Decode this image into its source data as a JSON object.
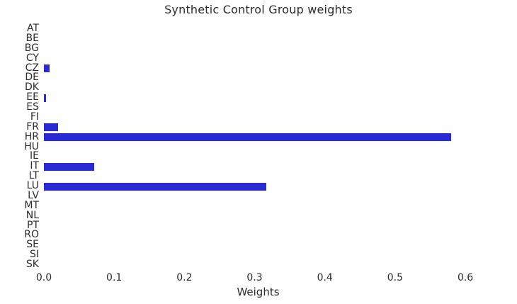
{
  "chart_data": {
    "type": "bar",
    "orientation": "horizontal",
    "title": "Synthetic Control Group weights",
    "xlabel": "Weights",
    "ylabel": "",
    "categories": [
      "AT",
      "BE",
      "BG",
      "CY",
      "CZ",
      "DE",
      "DK",
      "EE",
      "ES",
      "FI",
      "FR",
      "HR",
      "HU",
      "IE",
      "IT",
      "LT",
      "LU",
      "LV",
      "MT",
      "NL",
      "PT",
      "RO",
      "SE",
      "SI",
      "SK"
    ],
    "values": [
      0,
      0,
      0,
      0,
      0.008,
      0,
      0,
      0.003,
      0,
      0,
      0.02,
      0.58,
      0,
      0,
      0.072,
      0,
      0.317,
      0,
      0,
      0,
      0,
      0,
      0,
      0,
      0
    ],
    "xticks": [
      0.0,
      0.1,
      0.2,
      0.3,
      0.4,
      0.5,
      0.6
    ],
    "xtick_labels": [
      "0.0",
      "0.1",
      "0.2",
      "0.3",
      "0.4",
      "0.5",
      "0.6"
    ],
    "xlim": [
      0,
      0.61
    ],
    "grid": false,
    "legend": "none",
    "bar_color": "#2a2ad5",
    "text_color": "#2b2b2b",
    "background_color": "#ffffff"
  }
}
